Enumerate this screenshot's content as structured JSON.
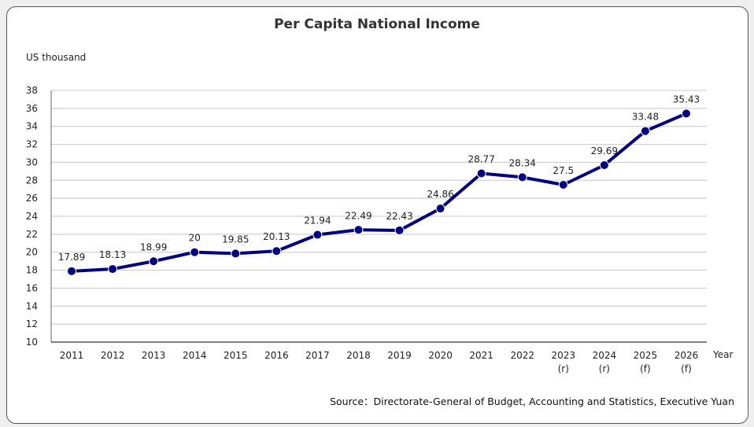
{
  "chart_data": {
    "type": "line",
    "title": "Per Capita National Income",
    "ylabel": "US thousand",
    "xlabel": "Year",
    "source": "Source：Directorate-General of Budget, Accounting and Statistics, Executive Yuan",
    "categories": [
      "2011",
      "2012",
      "2013",
      "2014",
      "2015",
      "2016",
      "2017",
      "2018",
      "2019",
      "2020",
      "2021",
      "2022",
      "2023",
      "2024",
      "2025",
      "2026"
    ],
    "category_notes": [
      "",
      "",
      "",
      "",
      "",
      "",
      "",
      "",
      "",
      "",
      "",
      "",
      "(r)",
      "(r)",
      "(f)",
      "(f)"
    ],
    "values": [
      17.89,
      18.13,
      18.99,
      20,
      19.85,
      20.13,
      21.94,
      22.49,
      22.43,
      24.86,
      28.77,
      28.34,
      27.5,
      29.69,
      33.48,
      35.43
    ],
    "ylim": [
      10,
      38
    ],
    "yticks": [
      10,
      12,
      14,
      16,
      18,
      20,
      22,
      24,
      26,
      28,
      30,
      32,
      34,
      36,
      38
    ],
    "grid": true,
    "legend": "none",
    "colors": {
      "line": "#000080",
      "grid": "#c8c8c8"
    }
  }
}
